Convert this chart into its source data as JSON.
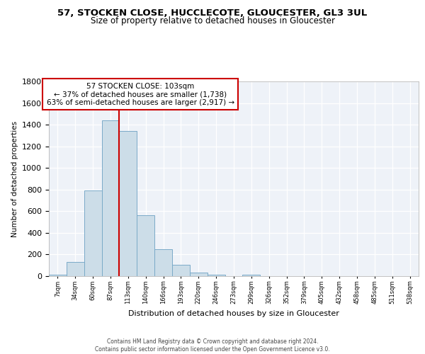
{
  "title": "57, STOCKEN CLOSE, HUCCLECOTE, GLOUCESTER, GL3 3UL",
  "subtitle": "Size of property relative to detached houses in Gloucester",
  "xlabel": "Distribution of detached houses by size in Gloucester",
  "ylabel": "Number of detached properties",
  "categories": [
    "7sqm",
    "34sqm",
    "60sqm",
    "87sqm",
    "113sqm",
    "140sqm",
    "166sqm",
    "193sqm",
    "220sqm",
    "246sqm",
    "273sqm",
    "299sqm",
    "326sqm",
    "352sqm",
    "379sqm",
    "405sqm",
    "432sqm",
    "458sqm",
    "485sqm",
    "511sqm",
    "538sqm"
  ],
  "values": [
    15,
    130,
    790,
    1440,
    1340,
    560,
    250,
    105,
    30,
    15,
    0,
    15,
    0,
    0,
    0,
    0,
    0,
    0,
    0,
    0,
    0
  ],
  "bar_color": "#ccdde8",
  "bar_edge_color": "#7aaac8",
  "red_line_index": 4,
  "annotation_title": "57 STOCKEN CLOSE: 103sqm",
  "annotation_line1": "← 37% of detached houses are smaller (1,738)",
  "annotation_line2": "63% of semi-detached houses are larger (2,917) →",
  "annotation_box_color": "#ffffff",
  "annotation_box_edge": "#cc0000",
  "footer_line1": "Contains HM Land Registry data © Crown copyright and database right 2024.",
  "footer_line2": "Contains public sector information licensed under the Open Government Licence v3.0.",
  "ylim": [
    0,
    1800
  ],
  "yticks": [
    0,
    200,
    400,
    600,
    800,
    1000,
    1200,
    1400,
    1600,
    1800
  ],
  "background_color": "#eef2f8",
  "grid_color": "#ffffff"
}
